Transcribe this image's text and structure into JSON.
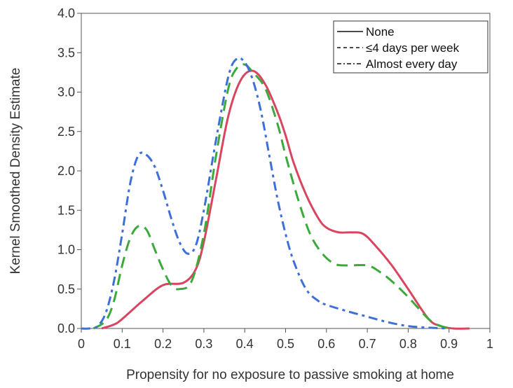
{
  "chart_data": {
    "type": "line",
    "title": "",
    "xlabel": "Propensity for no exposure to passive smoking at home",
    "ylabel": "Kernel Smoothed Density Estimate",
    "xlim": [
      0,
      1
    ],
    "ylim": [
      0,
      4
    ],
    "xticks": [
      0,
      0.1,
      0.2,
      0.3,
      0.4,
      0.5,
      0.6,
      0.7,
      0.8,
      0.9,
      1
    ],
    "xtick_labels": [
      "0",
      "0.1",
      "0.2",
      "0.3",
      "0.4",
      "0.5",
      "0.6",
      "0.7",
      "0.8",
      "0.9",
      "1"
    ],
    "yticks": [
      0,
      0.5,
      1,
      1.5,
      2,
      2.5,
      3,
      3.5,
      4
    ],
    "ytick_labels": [
      "0.0",
      "0.5",
      "1.0",
      "1.5",
      "2.0",
      "2.5",
      "3.0",
      "3.5",
      "4.0"
    ],
    "grid": false,
    "legend_position": "top-right",
    "series": [
      {
        "name": "None",
        "line_style": "solid",
        "color": "#d9455f",
        "x": [
          0.05,
          0.08,
          0.1,
          0.15,
          0.2,
          0.25,
          0.28,
          0.3,
          0.33,
          0.36,
          0.39,
          0.42,
          0.45,
          0.48,
          0.5,
          0.52,
          0.55,
          0.58,
          0.6,
          0.63,
          0.66,
          0.69,
          0.72,
          0.76,
          0.8,
          0.85,
          0.88,
          0.91,
          0.95
        ],
        "y": [
          0.0,
          0.05,
          0.12,
          0.35,
          0.55,
          0.58,
          0.75,
          1.1,
          1.9,
          2.7,
          3.15,
          3.27,
          3.1,
          2.75,
          2.45,
          2.1,
          1.7,
          1.4,
          1.28,
          1.22,
          1.22,
          1.2,
          1.05,
          0.8,
          0.5,
          0.12,
          0.03,
          0.0,
          0.0
        ]
      },
      {
        "name": "≤4 days per week",
        "line_style": "dashed",
        "color": "#3aaa3a",
        "x": [
          0.03,
          0.06,
          0.08,
          0.1,
          0.12,
          0.14,
          0.16,
          0.18,
          0.2,
          0.22,
          0.24,
          0.27,
          0.3,
          0.33,
          0.36,
          0.38,
          0.4,
          0.42,
          0.45,
          0.48,
          0.5,
          0.53,
          0.56,
          0.59,
          0.62,
          0.65,
          0.7,
          0.73,
          0.76,
          0.8,
          0.85,
          0.88,
          0.91
        ],
        "y": [
          0.0,
          0.1,
          0.35,
          0.8,
          1.15,
          1.3,
          1.25,
          1.0,
          0.75,
          0.55,
          0.5,
          0.6,
          1.2,
          2.2,
          3.05,
          3.3,
          3.35,
          3.25,
          3.05,
          2.6,
          2.2,
          1.65,
          1.2,
          0.95,
          0.82,
          0.8,
          0.8,
          0.72,
          0.6,
          0.4,
          0.12,
          0.03,
          0.0
        ]
      },
      {
        "name": "Almost every day",
        "line_style": "dashdot",
        "color": "#3d6fd8",
        "x": [
          0.0,
          0.02,
          0.04,
          0.06,
          0.08,
          0.1,
          0.12,
          0.14,
          0.16,
          0.18,
          0.2,
          0.22,
          0.24,
          0.26,
          0.28,
          0.3,
          0.33,
          0.36,
          0.38,
          0.4,
          0.42,
          0.44,
          0.46,
          0.48,
          0.5,
          0.52,
          0.55,
          0.58,
          0.6,
          0.65,
          0.7,
          0.75,
          0.8,
          0.85,
          0.9
        ],
        "y": [
          0.0,
          0.0,
          0.03,
          0.2,
          0.6,
          1.2,
          1.85,
          2.2,
          2.2,
          2.05,
          1.75,
          1.4,
          1.1,
          0.95,
          1.05,
          1.5,
          2.4,
          3.2,
          3.42,
          3.38,
          3.15,
          2.75,
          2.2,
          1.65,
          1.2,
          0.85,
          0.5,
          0.35,
          0.3,
          0.22,
          0.15,
          0.08,
          0.03,
          0.01,
          0.0
        ]
      }
    ]
  }
}
